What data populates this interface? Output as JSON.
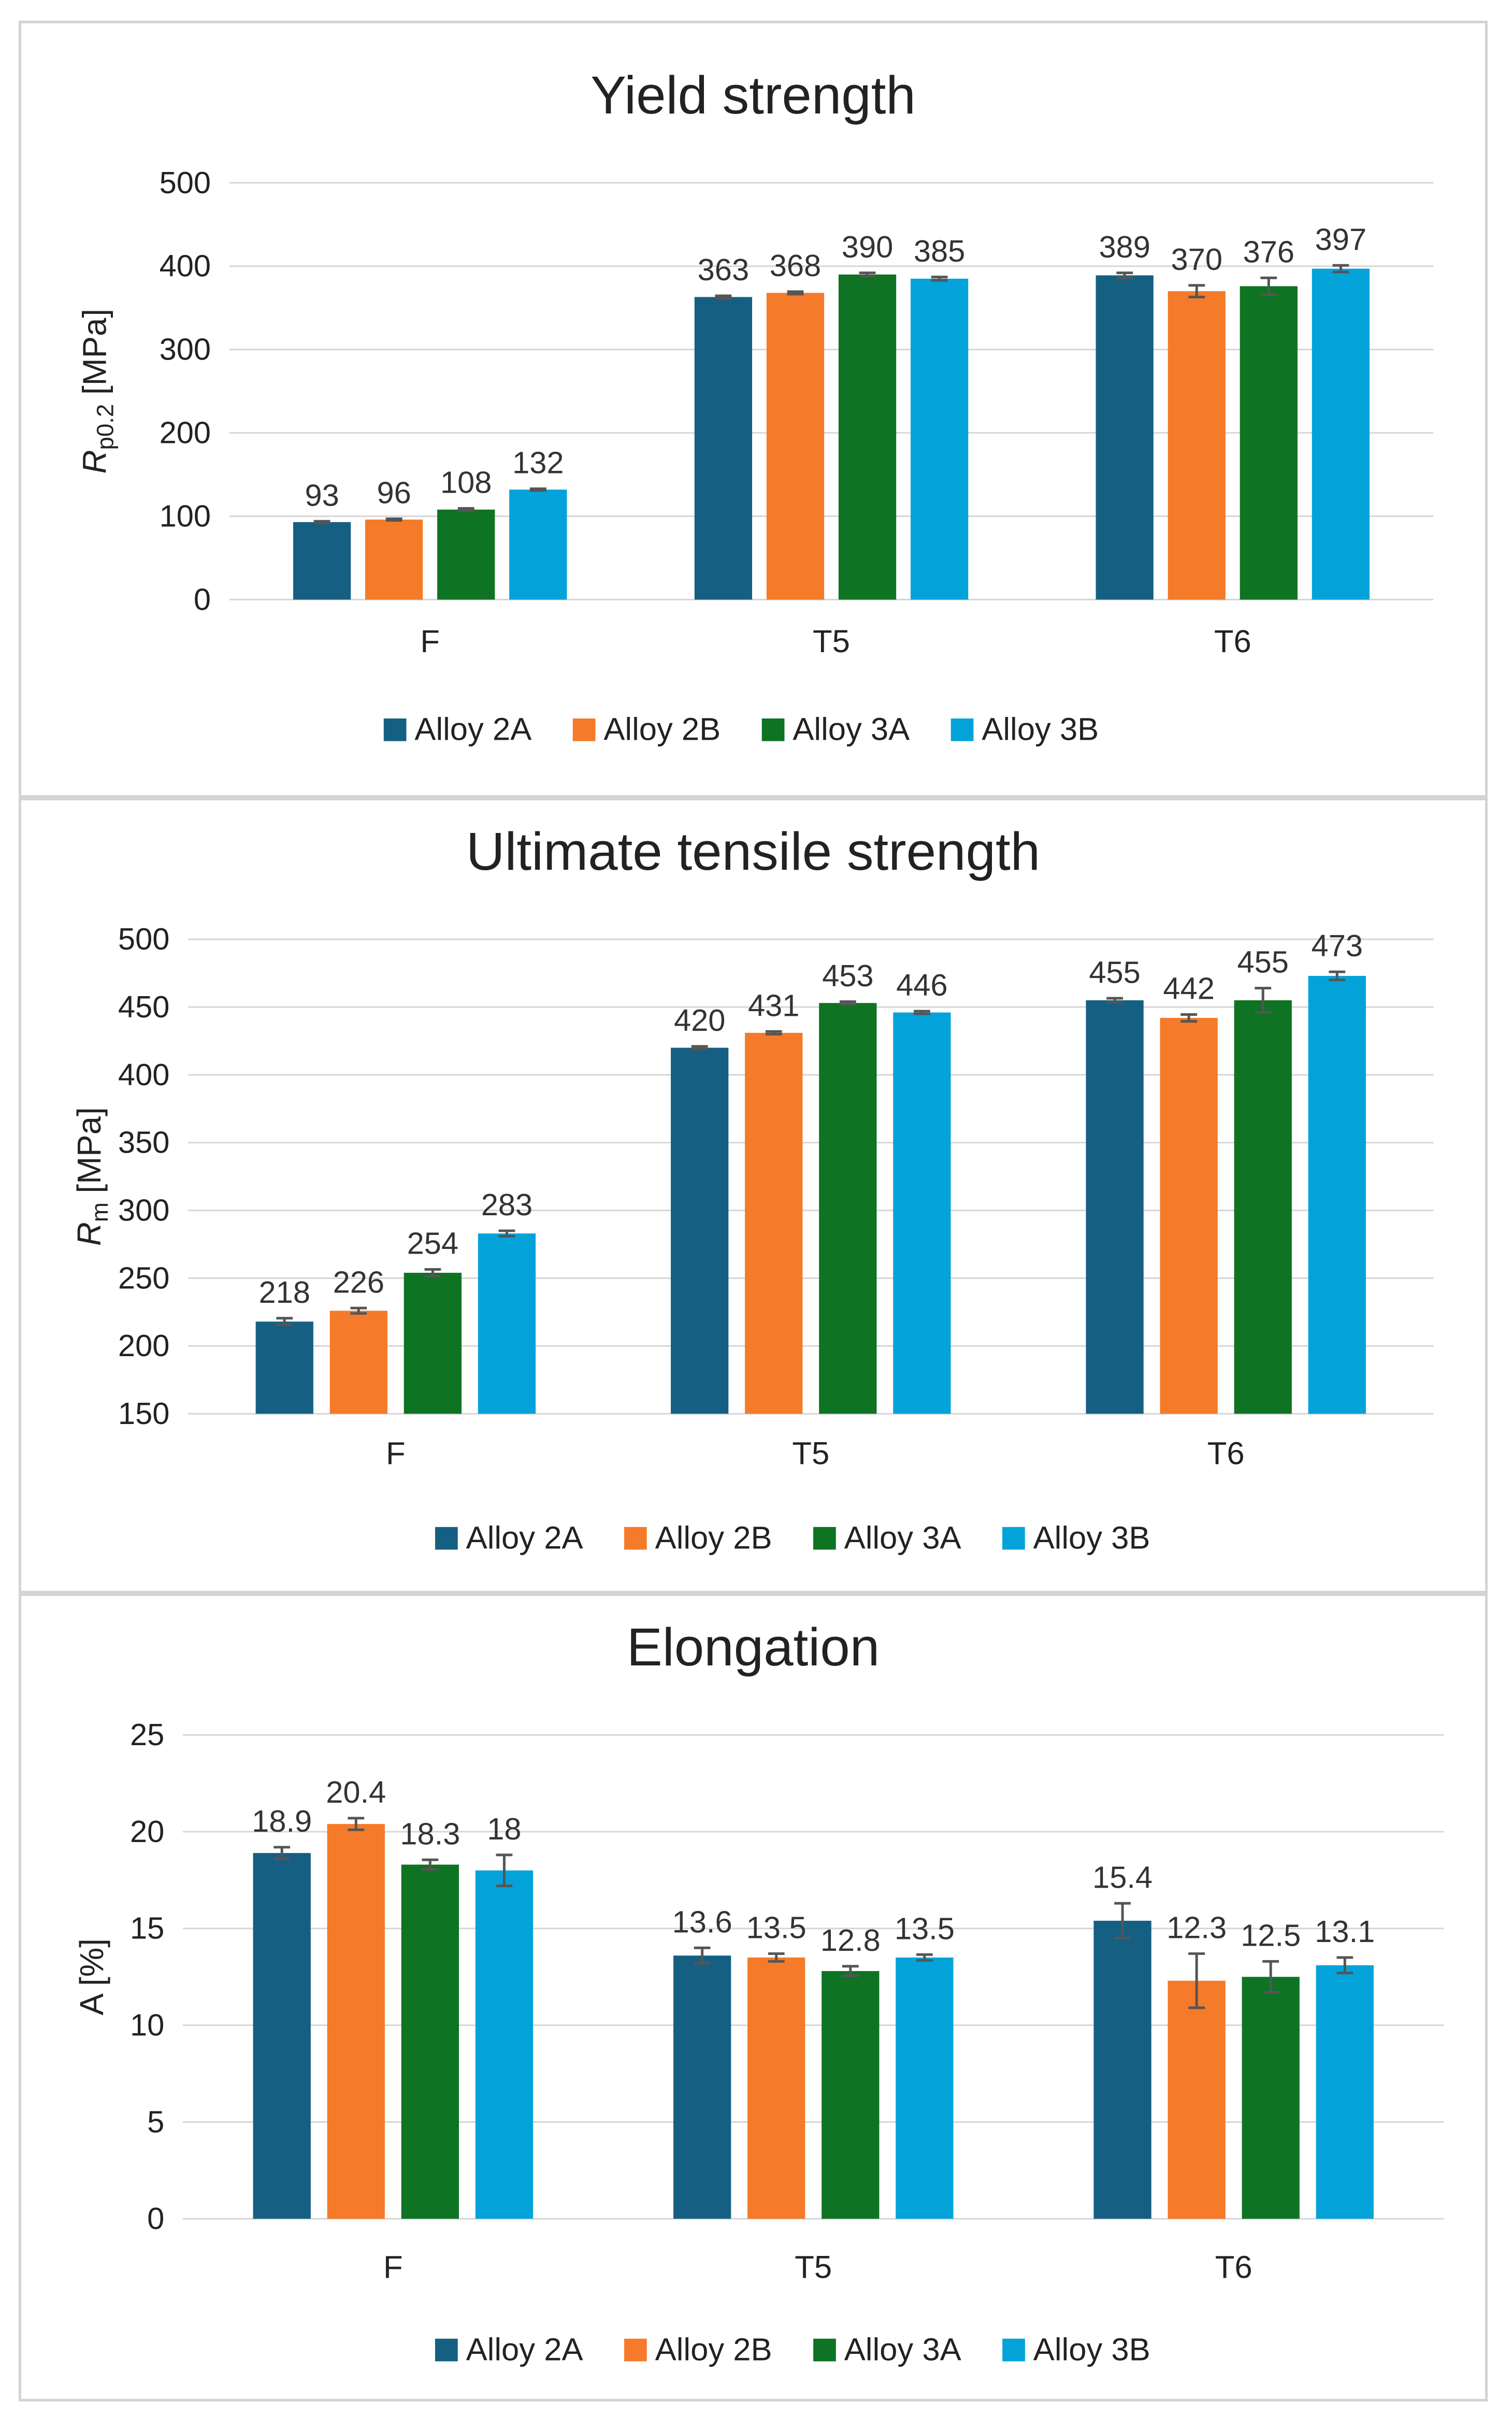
{
  "chart_data": [
    {
      "type": "bar",
      "title": "Yield strength",
      "ylabel_main": "R",
      "ylabel_sub": "p0.2",
      "ylabel_unit": " [MPa]",
      "xlabel": "",
      "ylim": [
        0,
        500
      ],
      "yticks": [
        0,
        100,
        200,
        300,
        400,
        500
      ],
      "categories": [
        "F",
        "T5",
        "T6"
      ],
      "series": [
        {
          "name": "Alloy 2A",
          "color": "#156082",
          "values": [
            93,
            363,
            389
          ],
          "errors": [
            1,
            1.5,
            3
          ]
        },
        {
          "name": "Alloy 2B",
          "color": "#F57A2A",
          "values": [
            96,
            368,
            370
          ],
          "errors": [
            1,
            1.5,
            7
          ]
        },
        {
          "name": "Alloy 3A",
          "color": "#0E7323",
          "values": [
            108,
            390,
            376
          ],
          "errors": [
            1.5,
            2,
            10
          ]
        },
        {
          "name": "Alloy 3B",
          "color": "#03A3DA",
          "values": [
            132,
            385,
            397
          ],
          "errors": [
            1,
            2,
            4
          ]
        }
      ],
      "data_labels": [
        [
          "93",
          "363",
          "389"
        ],
        [
          "96",
          "368",
          "370"
        ],
        [
          "108",
          "390",
          "376"
        ],
        [
          "132",
          "385",
          "397"
        ]
      ],
      "grid": true,
      "legend": "bottom"
    },
    {
      "type": "bar",
      "title": "Ultimate tensile strength",
      "ylabel_main": "R",
      "ylabel_sub": "m",
      "ylabel_unit": " [MPa]",
      "xlabel": "",
      "ylim": [
        150,
        500
      ],
      "yticks": [
        150,
        200,
        250,
        300,
        350,
        400,
        450,
        500
      ],
      "categories": [
        "F",
        "T5",
        "T6"
      ],
      "series": [
        {
          "name": "Alloy 2A",
          "color": "#156082",
          "values": [
            218,
            420,
            455
          ],
          "errors": [
            2.5,
            1,
            1.5
          ]
        },
        {
          "name": "Alloy 2B",
          "color": "#F57A2A",
          "values": [
            226,
            431,
            442
          ],
          "errors": [
            2,
            1,
            2.5
          ]
        },
        {
          "name": "Alloy 3A",
          "color": "#0E7323",
          "values": [
            254,
            453,
            455
          ],
          "errors": [
            2.5,
            1,
            9
          ]
        },
        {
          "name": "Alloy 3B",
          "color": "#03A3DA",
          "values": [
            283,
            446,
            473
          ],
          "errors": [
            2,
            1,
            3
          ]
        }
      ],
      "data_labels": [
        [
          "218",
          "420",
          "455"
        ],
        [
          "226",
          "431",
          "442"
        ],
        [
          "254",
          "453",
          "455"
        ],
        [
          "283",
          "446",
          "473"
        ]
      ],
      "grid": true,
      "legend": "bottom"
    },
    {
      "type": "bar",
      "title": "Elongation",
      "ylabel_main": "A [%]",
      "ylabel_sub": "",
      "ylabel_unit": "",
      "xlabel": "",
      "ylim": [
        0,
        25
      ],
      "yticks": [
        0,
        5,
        10,
        15,
        20,
        25
      ],
      "categories": [
        "F",
        "T5",
        "T6"
      ],
      "series": [
        {
          "name": "Alloy 2A",
          "color": "#156082",
          "values": [
            18.9,
            13.6,
            15.4
          ],
          "errors": [
            0.3,
            0.4,
            0.9
          ]
        },
        {
          "name": "Alloy 2B",
          "color": "#F57A2A",
          "values": [
            20.4,
            13.5,
            12.3
          ],
          "errors": [
            0.3,
            0.2,
            1.4
          ]
        },
        {
          "name": "Alloy 3A",
          "color": "#0E7323",
          "values": [
            18.3,
            12.8,
            12.5
          ],
          "errors": [
            0.25,
            0.25,
            0.8
          ]
        },
        {
          "name": "Alloy 3B",
          "color": "#03A3DA",
          "values": [
            18,
            13.5,
            13.1
          ],
          "errors": [
            0.8,
            0.15,
            0.4
          ]
        }
      ],
      "data_labels": [
        [
          "18.9",
          "13.6",
          "15.4"
        ],
        [
          "20.4",
          "13.5",
          "12.3"
        ],
        [
          "18.3",
          "12.8",
          "12.5"
        ],
        [
          "18",
          "13.5",
          "13.1"
        ]
      ],
      "grid": true,
      "legend": "bottom"
    }
  ]
}
